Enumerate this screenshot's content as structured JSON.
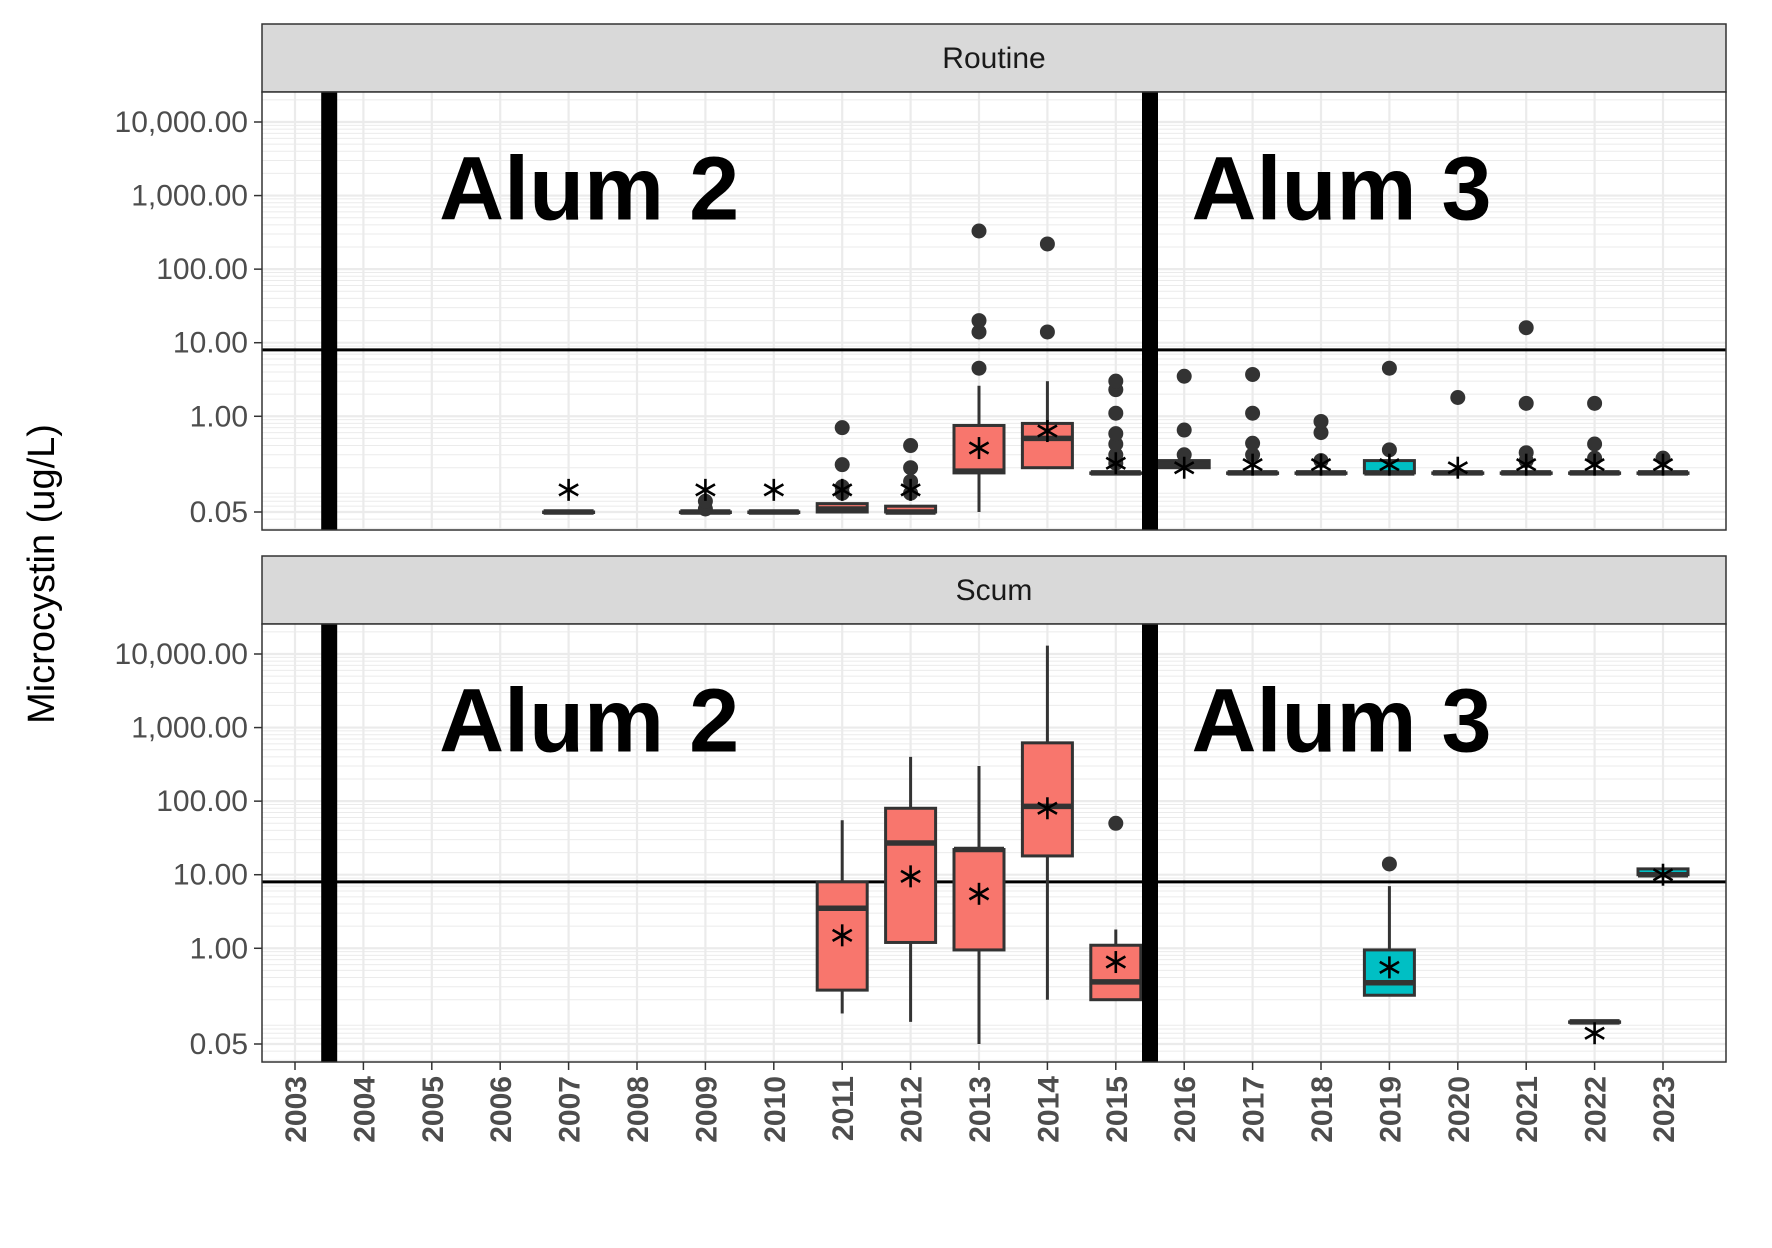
{
  "chart_data": {
    "type": "boxplot",
    "ylabel": "Microcystin (ug/L)",
    "xlabel": "",
    "y_scale": "log10",
    "y_ticks": [
      0.05,
      1,
      10,
      100,
      1000,
      10000
    ],
    "y_tick_labels": [
      "0.05",
      "1.00",
      "10.00",
      "100.00",
      "1,000.00",
      "10,000.00"
    ],
    "ylim": [
      0.02,
      35000
    ],
    "x_categories": [
      "2003",
      "2004",
      "2005",
      "2006",
      "2007",
      "2008",
      "2009",
      "2010",
      "2011",
      "2012",
      "2013",
      "2014",
      "2015",
      "2016",
      "2017",
      "2018",
      "2019",
      "2020",
      "2021",
      "2022",
      "2023"
    ],
    "reference_line_y": 8,
    "period_dividers_x": [
      2003.5,
      2015.5
    ],
    "colors": {
      "Alum 2": "#F8766D",
      "Alum 3": "#00BFC4",
      "grid": "#ebebeb",
      "strip": "#d9d9d9",
      "box_line": "#333333"
    },
    "facets": [
      {
        "name": "Routine",
        "annotations": [
          {
            "text": "Alum 2",
            "x": 2007.3,
            "y": 1200
          },
          {
            "text": "Alum 3",
            "x": 2018.3,
            "y": 1200
          }
        ],
        "boxes": [
          {
            "year": 2007,
            "period": "Alum 2",
            "min": 0.05,
            "q1": 0.05,
            "median": 0.05,
            "q3": 0.05,
            "max": 0.05,
            "mean": 0.1,
            "outliers": []
          },
          {
            "year": 2009,
            "period": "Alum 2",
            "min": 0.05,
            "q1": 0.05,
            "median": 0.05,
            "q3": 0.05,
            "max": 0.05,
            "mean": 0.1,
            "outliers": [
              0.055,
              0.07
            ]
          },
          {
            "year": 2010,
            "period": "Alum 2",
            "min": 0.05,
            "q1": 0.05,
            "median": 0.05,
            "q3": 0.05,
            "max": 0.05,
            "mean": 0.1,
            "outliers": []
          },
          {
            "year": 2011,
            "period": "Alum 2",
            "min": 0.05,
            "q1": 0.05,
            "median": 0.055,
            "q3": 0.065,
            "max": 0.065,
            "mean": 0.1,
            "outliers": [
              0.09,
              0.11,
              0.22,
              0.7
            ]
          },
          {
            "year": 2012,
            "period": "Alum 2",
            "min": 0.05,
            "q1": 0.05,
            "median": 0.05,
            "q3": 0.06,
            "max": 0.06,
            "mean": 0.1,
            "outliers": [
              0.09,
              0.13,
              0.2,
              0.4
            ]
          },
          {
            "year": 2013,
            "period": "Alum 2",
            "min": 0.05,
            "q1": 0.17,
            "median": 0.18,
            "q3": 0.75,
            "max": 2.6,
            "mean": 0.37,
            "outliers": [
              4.5,
              14,
              20,
              330
            ]
          },
          {
            "year": 2014,
            "period": "Alum 2",
            "min": 0.2,
            "q1": 0.2,
            "median": 0.5,
            "q3": 0.8,
            "max": 3,
            "mean": 0.63,
            "outliers": [
              14,
              220
            ]
          },
          {
            "year": 2015,
            "period": "Alum 2",
            "min": 0.17,
            "q1": 0.17,
            "median": 0.17,
            "q3": 0.17,
            "max": 0.17,
            "mean": 0.23,
            "outliers": [
              0.23,
              0.3,
              0.42,
              0.58,
              1.1,
              2.3,
              3
            ]
          },
          {
            "year": 2016,
            "period": "Alum 3",
            "min": 0.2,
            "q1": 0.2,
            "median": 0.22,
            "q3": 0.25,
            "max": 0.25,
            "mean": 0.2,
            "outliers": [
              0.3,
              0.65,
              3.5
            ]
          },
          {
            "year": 2017,
            "period": "Alum 3",
            "min": 0.17,
            "q1": 0.17,
            "median": 0.17,
            "q3": 0.17,
            "max": 0.17,
            "mean": 0.22,
            "outliers": [
              0.3,
              0.43,
              1.1,
              3.7
            ]
          },
          {
            "year": 2018,
            "period": "Alum 3",
            "min": 0.17,
            "q1": 0.17,
            "median": 0.17,
            "q3": 0.17,
            "max": 0.17,
            "mean": 0.22,
            "outliers": [
              0.25,
              0.6,
              0.85
            ]
          },
          {
            "year": 2019,
            "period": "Alum 3",
            "min": 0.17,
            "q1": 0.17,
            "median": 0.17,
            "q3": 0.25,
            "max": 0.25,
            "mean": 0.22,
            "outliers": [
              0.35,
              4.5
            ]
          },
          {
            "year": 2020,
            "period": "Alum 3",
            "min": 0.17,
            "q1": 0.17,
            "median": 0.17,
            "q3": 0.17,
            "max": 0.17,
            "mean": 0.2,
            "outliers": [
              1.8
            ]
          },
          {
            "year": 2021,
            "period": "Alum 3",
            "min": 0.17,
            "q1": 0.17,
            "median": 0.17,
            "q3": 0.17,
            "max": 0.17,
            "mean": 0.22,
            "outliers": [
              0.25,
              0.32,
              1.5,
              16
            ]
          },
          {
            "year": 2022,
            "period": "Alum 3",
            "min": 0.17,
            "q1": 0.17,
            "median": 0.17,
            "q3": 0.17,
            "max": 0.17,
            "mean": 0.22,
            "outliers": [
              0.27,
              0.42,
              1.5
            ]
          },
          {
            "year": 2023,
            "period": "Alum 3",
            "min": 0.17,
            "q1": 0.17,
            "median": 0.17,
            "q3": 0.17,
            "max": 0.17,
            "mean": 0.22,
            "outliers": [
              0.27
            ]
          }
        ]
      },
      {
        "name": "Scum",
        "annotations": [
          {
            "text": "Alum 2",
            "x": 2007.3,
            "y": 1200
          },
          {
            "text": "Alum 3",
            "x": 2018.3,
            "y": 1200
          }
        ],
        "boxes": [
          {
            "year": 2011,
            "period": "Alum 2",
            "min": 0.13,
            "q1": 0.27,
            "median": 3.5,
            "q3": 8,
            "max": 55,
            "mean": 1.5,
            "outliers": []
          },
          {
            "year": 2012,
            "period": "Alum 2",
            "min": 0.1,
            "q1": 1.2,
            "median": 27,
            "q3": 80,
            "max": 400,
            "mean": 9.5,
            "outliers": []
          },
          {
            "year": 2013,
            "period": "Alum 2",
            "min": 0.05,
            "q1": 0.95,
            "median": 22,
            "q3": 22,
            "max": 300,
            "mean": 5.5,
            "outliers": []
          },
          {
            "year": 2014,
            "period": "Alum 2",
            "min": 0.2,
            "q1": 18,
            "median": 85,
            "q3": 620,
            "max": 13000,
            "mean": 80,
            "outliers": []
          },
          {
            "year": 2015,
            "period": "Alum 2",
            "min": 0.2,
            "q1": 0.2,
            "median": 0.35,
            "q3": 1.1,
            "max": 1.8,
            "mean": 0.65,
            "outliers": [
              50
            ]
          },
          {
            "year": 2019,
            "period": "Alum 3",
            "min": 0.23,
            "q1": 0.23,
            "median": 0.34,
            "q3": 0.95,
            "max": 7,
            "mean": 0.55,
            "outliers": [
              14
            ]
          },
          {
            "year": 2022,
            "period": "Alum 3",
            "min": 0.1,
            "q1": 0.1,
            "median": 0.1,
            "q3": 0.1,
            "max": 0.1,
            "mean": 0.07,
            "outliers": []
          },
          {
            "year": 2023,
            "period": "Alum 3",
            "min": 10,
            "q1": 10,
            "median": 10,
            "q3": 12,
            "max": 12,
            "mean": 10,
            "outliers": []
          }
        ]
      }
    ]
  }
}
